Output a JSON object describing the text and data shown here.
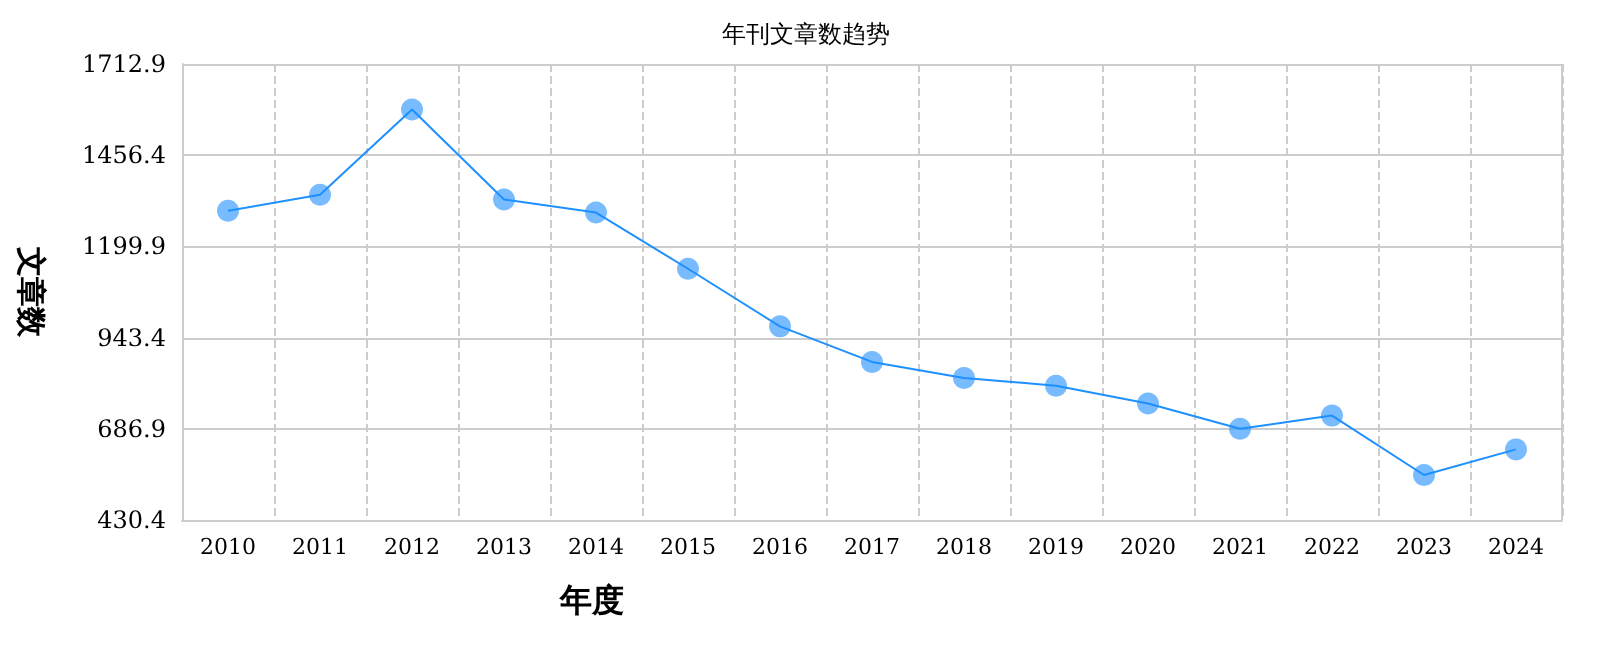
{
  "chart_data": {
    "type": "line",
    "title": "年刊文章数趋势",
    "xlabel": "年度",
    "ylabel": "文章数",
    "categories": [
      "2010",
      "2011",
      "2012",
      "2013",
      "2014",
      "2015",
      "2016",
      "2017",
      "2018",
      "2019",
      "2020",
      "2021",
      "2022",
      "2023",
      "2024"
    ],
    "series": [
      {
        "color": "#1e90ff",
        "values": [
          1300,
          1345,
          1585,
          1332,
          1295,
          1137,
          975,
          875,
          830,
          808,
          758,
          687,
          724,
          557,
          629
        ]
      }
    ],
    "ylim": [
      430.4,
      1712.9
    ],
    "yticks": [
      430.4,
      686.9,
      943.4,
      1199.9,
      1456.4,
      1712.9
    ],
    "grid": true,
    "marker": "circle",
    "line_style": "solid"
  }
}
